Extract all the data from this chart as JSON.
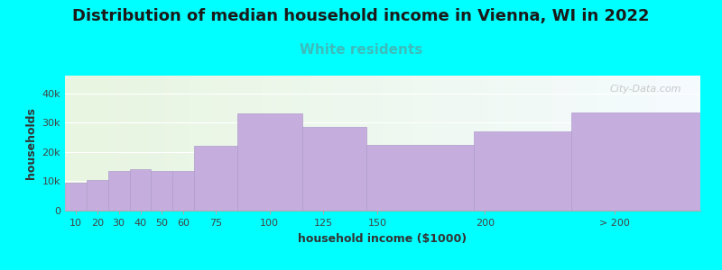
{
  "title": "Distribution of median household income in Vienna, WI in 2022",
  "subtitle": "White residents",
  "xlabel": "household income ($1000)",
  "ylabel": "households",
  "background_color": "#00FFFF",
  "bar_color": "#c5aedd",
  "bar_edge_color": "#b09ccc",
  "categories": [
    "10",
    "20",
    "30",
    "40",
    "50",
    "60",
    "75",
    "100",
    "125",
    "150",
    "200",
    "> 200"
  ],
  "values": [
    9500,
    10500,
    13500,
    14000,
    13500,
    13500,
    22000,
    33000,
    28500,
    22500,
    27000,
    33500
  ],
  "x_lefts": [
    5,
    15,
    25,
    35,
    45,
    55,
    65,
    85,
    115,
    145,
    195,
    240
  ],
  "widths": [
    10,
    10,
    10,
    10,
    10,
    10,
    20,
    30,
    30,
    50,
    45,
    60
  ],
  "xlim": [
    5,
    300
  ],
  "ylim": [
    0,
    46000
  ],
  "yticks": [
    0,
    10000,
    20000,
    30000,
    40000
  ],
  "ytick_labels": [
    "0",
    "10k",
    "20k",
    "30k",
    "40k"
  ],
  "xtick_positions": [
    10,
    20,
    30,
    40,
    50,
    60,
    75,
    100,
    125,
    150,
    200,
    260
  ],
  "xtick_labels": [
    "10",
    "20",
    "30",
    "40",
    "50",
    "60",
    "75",
    "100",
    "125",
    "150",
    "200",
    "> 200"
  ],
  "title_fontsize": 13,
  "subtitle_fontsize": 11,
  "subtitle_color": "#3dbcbc",
  "axis_label_fontsize": 9,
  "tick_fontsize": 8,
  "watermark": "City-Data.com"
}
